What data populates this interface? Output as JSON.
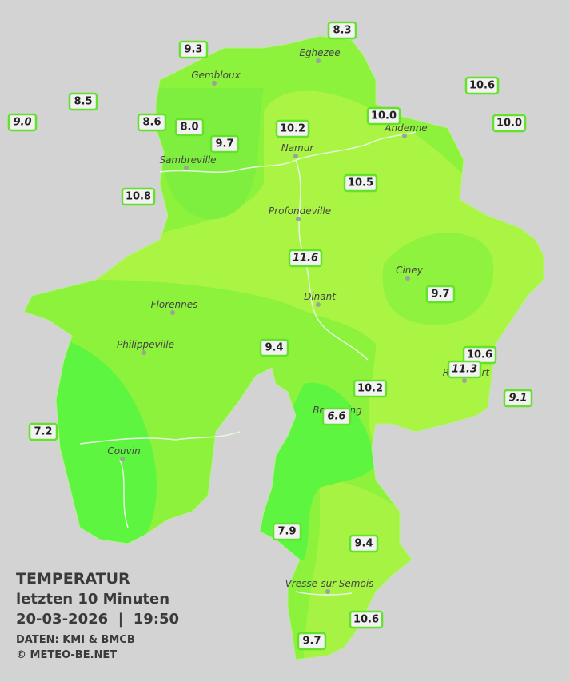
{
  "map": {
    "title": "TEMPERATUR",
    "subtitle": "letzten 10 Minuten",
    "timestamp": "20-03-2026  |  19:50",
    "source": "DATEN: KMI & BMCB",
    "copyright": "© METEO-BE.NET",
    "cities": [
      "Eghezee",
      "Gembloux",
      "Andenne",
      "Namur",
      "Sambreville",
      "Profondeville",
      "Ciney",
      "Dinant",
      "Florennes",
      "Philippeville",
      "Beauraing",
      "Rochefort",
      "Couvin",
      "Vresse-sur-Semois"
    ],
    "stations": [
      "8.3",
      "9.3",
      "8.5",
      "9.0",
      "8.6",
      "8.0",
      "9.7",
      "10.2",
      "10.0",
      "10.6",
      "10.0",
      "10.5",
      "10.8",
      "11.6",
      "9.7",
      "9.4",
      "10.6",
      "11.3",
      "10.2",
      "9.1",
      "6.6",
      "7.2",
      "7.9",
      "9.4",
      "10.6",
      "9.7"
    ]
  }
}
